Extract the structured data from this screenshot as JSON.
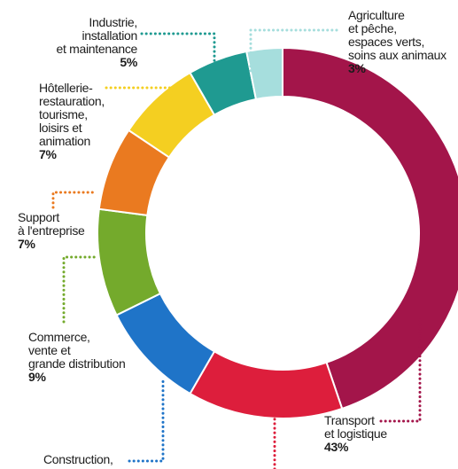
{
  "chart_data": {
    "type": "pie",
    "style": "donut",
    "slices": [
      {
        "lines": [
          "Transport",
          "et logistique"
        ],
        "pct_label": "43%",
        "value": 43,
        "color": "#a3154a"
      },
      {
        "lines": [],
        "pct_label": "",
        "value": 13,
        "color": "#dd1e3c"
      },
      {
        "lines": [
          "Construction,"
        ],
        "pct_label": "",
        "value": 9,
        "color": "#1f74c8"
      },
      {
        "lines": [
          "Commerce,",
          "vente et",
          "grande distribution"
        ],
        "pct_label": "9%",
        "value": 9,
        "color": "#74aa2c"
      },
      {
        "lines": [
          "Support",
          "à l'entreprise"
        ],
        "pct_label": "7%",
        "value": 7,
        "color": "#ea7a20"
      },
      {
        "lines": [
          "Hôtellerie-",
          "restauration,",
          "tourisme,",
          "loisirs et",
          "animation"
        ],
        "pct_label": "7%",
        "value": 7,
        "color": "#f4cf21"
      },
      {
        "lines": [
          "Industrie,",
          "installation",
          "et maintenance"
        ],
        "pct_label": "5%",
        "value": 5,
        "color": "#1f9a91"
      },
      {
        "lines": [
          "Agriculture",
          "et pêche,",
          "espaces verts,",
          "soins aux animaux"
        ],
        "pct_label": "3%",
        "value": 3,
        "color": "#a6dedd"
      }
    ]
  }
}
